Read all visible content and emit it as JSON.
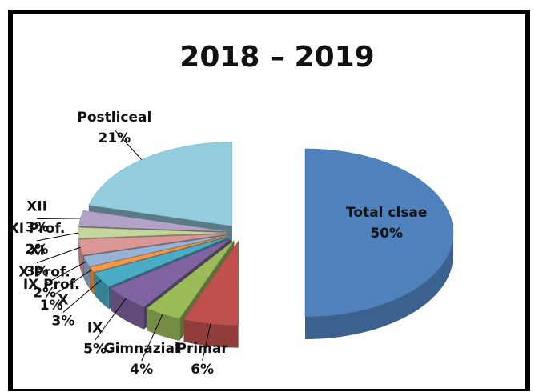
{
  "chart_data": {
    "type": "pie3d",
    "title": "2018 – 2019",
    "categories": [
      "Total clsae",
      "Primar",
      "Gimnazial",
      "IX",
      "X",
      "IX Prof.",
      "X Prof.",
      "XI",
      "XI Prof.",
      "XII",
      "Postliceal"
    ],
    "values": [
      50,
      6,
      4,
      5,
      3,
      1,
      2,
      3,
      2,
      3,
      21
    ],
    "value_labels": [
      "50%",
      "6%",
      "4%",
      "5%",
      "3%",
      "1%",
      "2%",
      "3%",
      "2%",
      "3%",
      "21%"
    ],
    "colors": [
      "#4f81bd",
      "#c0504d",
      "#9bbb59",
      "#8064a2",
      "#4bacc6",
      "#f79646",
      "#95b3d7",
      "#d99694",
      "#c3d69b",
      "#b3a2c7",
      "#93cddd"
    ]
  }
}
